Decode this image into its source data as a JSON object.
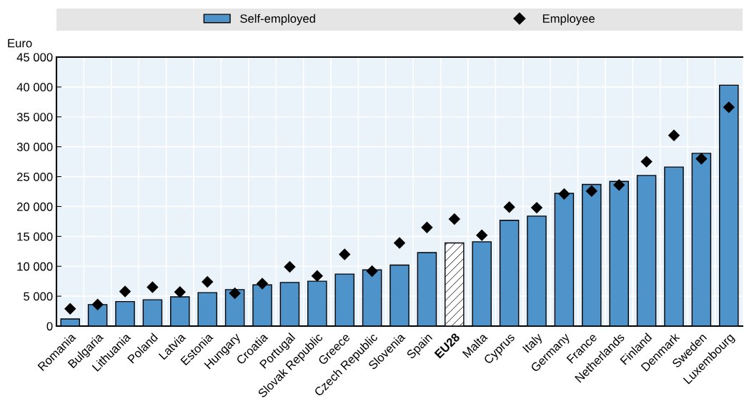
{
  "chart_data": {
    "type": "bar",
    "ylabel": "Euro",
    "categories": [
      "Romania",
      "Bulgaria",
      "Lithuania",
      "Poland",
      "Latvia",
      "Estonia",
      "Hungary",
      "Croatia",
      "Portugal",
      "Slovak Republic",
      "Greece",
      "Czech Republic",
      "Slovenia",
      "Spain",
      "EU28",
      "Malta",
      "Cyprus",
      "Italy",
      "Germany",
      "France",
      "Netherlands",
      "Finland",
      "Denmark",
      "Sweden",
      "Luxembourg"
    ],
    "series": [
      {
        "name": "Self-employed",
        "color": "#4e93c9",
        "colors": [
          "#4e93c9",
          "#4e93c9",
          "#4e93c9",
          "#4e93c9",
          "#4e93c9",
          "#4e93c9",
          "#4e93c9",
          "#4e93c9",
          "#4e93c9",
          "#4e93c9",
          "#4e93c9",
          "#4e93c9",
          "#4e93c9",
          "#4e93c9",
          "#ffffff",
          "#4e93c9",
          "#4e93c9",
          "#4e93c9",
          "#4e93c9",
          "#4e93c9",
          "#4e93c9",
          "#4e93c9",
          "#4e93c9",
          "#4e93c9",
          "#4e93c9"
        ],
        "values": [
          1200,
          3600,
          4100,
          4400,
          4900,
          5600,
          6100,
          6900,
          7300,
          7500,
          8700,
          9400,
          10200,
          12300,
          13900,
          14100,
          17700,
          18400,
          22200,
          23700,
          24200,
          25200,
          26600,
          28900,
          40300
        ]
      },
      {
        "name": "Employee",
        "type": "scatter",
        "color": "#000000",
        "marker": "diamond",
        "values": [
          2900,
          3600,
          5800,
          6500,
          5700,
          7400,
          5500,
          7100,
          9900,
          8400,
          12000,
          9200,
          13900,
          16500,
          17900,
          15200,
          19900,
          19800,
          22100,
          22600,
          23600,
          27500,
          31900,
          28000,
          36600
        ]
      }
    ],
    "ylim": [
      0,
      45000
    ],
    "yticks": [
      {
        "value": 0,
        "label": "0"
      },
      {
        "value": 5000,
        "label": "5 000"
      },
      {
        "value": 10000,
        "label": "10 000"
      },
      {
        "value": 15000,
        "label": "15 000"
      },
      {
        "value": 20000,
        "label": "20 000"
      },
      {
        "value": 25000,
        "label": "25 000"
      },
      {
        "value": 30000,
        "label": "30 000"
      },
      {
        "value": 35000,
        "label": "35 000"
      },
      {
        "value": 40000,
        "label": "40 000"
      },
      {
        "value": 45000,
        "label": "45 000"
      }
    ],
    "grid": true,
    "legend": "top"
  }
}
